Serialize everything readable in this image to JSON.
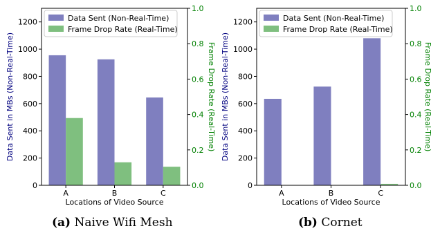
{
  "chart_data": [
    {
      "type": "bar",
      "caption_label": "(a)",
      "caption_title": "Naive Wifi Mesh",
      "categories": [
        "A",
        "B",
        "C"
      ],
      "xlabel": "Locations of Video Source",
      "ylabel_left": "Data Sent in MBs (Non-Real-Time)",
      "ylabel_right": "Frame Drop Rate (Real-Time)",
      "ylim_left": [
        0,
        1300
      ],
      "ylim_right": [
        0,
        1.0
      ],
      "yticks_left": [
        "0",
        "200",
        "400",
        "600",
        "800",
        "1000",
        "1200"
      ],
      "yticks_right": [
        "0.0",
        "0.2",
        "0.4",
        "0.6",
        "0.8",
        "1.0"
      ],
      "legend_position": "top-left",
      "series": [
        {
          "name": "Data Sent (Non-Real-Time)",
          "axis": "left",
          "color": "#7f7fbf",
          "values": [
            955,
            925,
            645
          ]
        },
        {
          "name": "Frame Drop Rate (Real-Time)",
          "axis": "right",
          "color": "#7fbf7f",
          "values": [
            0.38,
            0.13,
            0.105
          ]
        }
      ]
    },
    {
      "type": "bar",
      "caption_label": "(b)",
      "caption_title": "Cornet",
      "categories": [
        "A",
        "B",
        "C"
      ],
      "xlabel": "Locations of Video Source",
      "ylabel_left": "Data Sent in MBs (Non-Real-Time)",
      "ylabel_right": "Frame Drop Rate (Real-Time)",
      "ylim_left": [
        0,
        1300
      ],
      "ylim_right": [
        0,
        1.0
      ],
      "yticks_left": [
        "0",
        "200",
        "400",
        "600",
        "800",
        "1000",
        "1200"
      ],
      "yticks_right": [
        "0.0",
        "0.2",
        "0.4",
        "0.6",
        "0.8",
        "1.0"
      ],
      "legend_position": "top-left",
      "series": [
        {
          "name": "Data Sent (Non-Real-Time)",
          "axis": "left",
          "color": "#7f7fbf",
          "values": [
            635,
            725,
            1080
          ]
        },
        {
          "name": "Frame Drop Rate (Real-Time)",
          "axis": "right",
          "color": "#7fbf7f",
          "values": [
            0.002,
            0.002,
            0.008
          ]
        }
      ]
    }
  ],
  "colors": {
    "left_axis_label": "#00007f",
    "right_axis": "#008000"
  }
}
